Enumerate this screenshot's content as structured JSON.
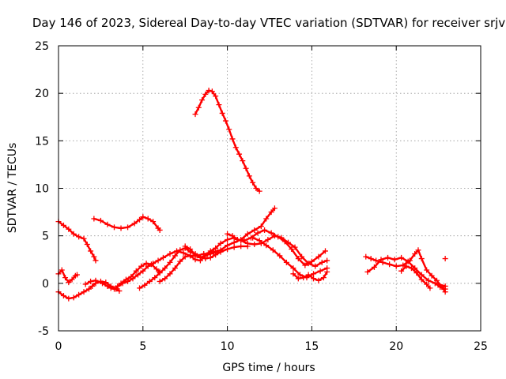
{
  "chart_data": {
    "type": "scatter",
    "title": "Day 146 of 2023, Sidereal Day-to-day VTEC variation (SDTVAR) for receiver srjv",
    "xlabel": "GPS time / hours",
    "ylabel": "SDTVAR / TECUs",
    "xlim": [
      0,
      25
    ],
    "ylim": [
      -5,
      25
    ],
    "xticks": [
      0,
      5,
      10,
      15,
      20,
      25
    ],
    "yticks": [
      -5,
      0,
      5,
      10,
      15,
      20,
      25
    ],
    "xtick_labels": [
      "0",
      "5",
      "10",
      "15",
      "20",
      "25"
    ],
    "ytick_labels": [
      "-5",
      "0",
      "5",
      "10",
      "15",
      "20",
      "25"
    ],
    "grid": true,
    "marker": "+",
    "color": "#ff0000",
    "series": [
      {
        "name": "seg-1",
        "points": [
          [
            0.0,
            6.5
          ],
          [
            0.3,
            6.1
          ],
          [
            0.6,
            5.7
          ],
          [
            0.9,
            5.2
          ],
          [
            1.2,
            4.9
          ],
          [
            1.5,
            4.7
          ],
          [
            1.7,
            4.1
          ],
          [
            1.9,
            3.4
          ],
          [
            2.1,
            2.8
          ],
          [
            2.2,
            2.4
          ]
        ]
      },
      {
        "name": "seg-2",
        "points": [
          [
            2.1,
            6.8
          ],
          [
            2.5,
            6.6
          ],
          [
            2.9,
            6.2
          ],
          [
            3.3,
            5.9
          ],
          [
            3.7,
            5.8
          ],
          [
            4.1,
            5.9
          ],
          [
            4.5,
            6.3
          ],
          [
            4.8,
            6.7
          ],
          [
            5.0,
            7.0
          ],
          [
            5.3,
            6.8
          ],
          [
            5.6,
            6.5
          ],
          [
            5.9,
            5.8
          ],
          [
            6.0,
            5.6
          ]
        ]
      },
      {
        "name": "seg-3",
        "points": [
          [
            8.1,
            17.8
          ],
          [
            8.3,
            18.5
          ],
          [
            8.5,
            19.3
          ],
          [
            8.7,
            19.9
          ],
          [
            8.9,
            20.3
          ],
          [
            9.1,
            20.2
          ],
          [
            9.3,
            19.7
          ],
          [
            9.5,
            18.8
          ],
          [
            9.7,
            17.9
          ],
          [
            9.9,
            17.1
          ],
          [
            10.1,
            16.2
          ],
          [
            10.3,
            15.2
          ],
          [
            10.5,
            14.3
          ],
          [
            10.7,
            13.6
          ],
          [
            10.9,
            12.9
          ],
          [
            11.1,
            12.1
          ],
          [
            11.3,
            11.3
          ],
          [
            11.5,
            10.6
          ],
          [
            11.7,
            10.0
          ],
          [
            11.9,
            9.7
          ]
        ]
      },
      {
        "name": "seg-4",
        "points": [
          [
            0.0,
            1.0
          ],
          [
            0.2,
            1.4
          ],
          [
            0.4,
            0.6
          ],
          [
            0.6,
            0.1
          ],
          [
            0.8,
            0.4
          ],
          [
            1.0,
            0.8
          ],
          [
            1.1,
            0.9
          ]
        ]
      },
      {
        "name": "seg-5",
        "points": [
          [
            0.0,
            -0.9
          ],
          [
            0.3,
            -1.3
          ],
          [
            0.6,
            -1.6
          ],
          [
            0.9,
            -1.5
          ],
          [
            1.2,
            -1.2
          ],
          [
            1.5,
            -0.9
          ],
          [
            1.8,
            -0.6
          ],
          [
            2.0,
            -0.3
          ],
          [
            2.2,
            0.0
          ],
          [
            2.5,
            0.2
          ],
          [
            2.8,
            0.1
          ],
          [
            3.1,
            -0.3
          ],
          [
            3.4,
            -0.6
          ],
          [
            3.6,
            -0.8
          ]
        ]
      },
      {
        "name": "seg-6",
        "points": [
          [
            1.6,
            -0.1
          ],
          [
            1.9,
            0.2
          ],
          [
            2.2,
            0.3
          ],
          [
            2.6,
            0.0
          ],
          [
            2.9,
            -0.3
          ],
          [
            3.1,
            -0.5
          ],
          [
            3.3,
            -0.6
          ],
          [
            3.5,
            -0.3
          ],
          [
            3.8,
            0.0
          ],
          [
            4.1,
            0.2
          ],
          [
            4.4,
            0.5
          ],
          [
            4.7,
            0.9
          ],
          [
            5.0,
            1.3
          ],
          [
            5.3,
            1.8
          ],
          [
            5.6,
            2.1
          ],
          [
            5.9,
            2.4
          ],
          [
            6.2,
            2.7
          ],
          [
            6.6,
            3.1
          ],
          [
            7.0,
            3.4
          ],
          [
            7.4,
            3.2
          ],
          [
            7.8,
            2.9
          ],
          [
            8.2,
            2.9
          ],
          [
            8.6,
            3.1
          ],
          [
            9.0,
            3.1
          ],
          [
            9.4,
            3.3
          ]
        ]
      },
      {
        "name": "seg-7",
        "points": [
          [
            3.4,
            -0.5
          ],
          [
            3.7,
            0.0
          ],
          [
            4.0,
            0.4
          ],
          [
            4.3,
            0.7
          ],
          [
            4.6,
            1.3
          ],
          [
            4.9,
            1.8
          ],
          [
            5.2,
            2.1
          ],
          [
            5.5,
            2.0
          ],
          [
            5.8,
            1.5
          ],
          [
            6.0,
            1.2
          ]
        ]
      },
      {
        "name": "seg-8",
        "points": [
          [
            4.8,
            -0.5
          ],
          [
            5.1,
            -0.2
          ],
          [
            5.4,
            0.2
          ],
          [
            5.7,
            0.6
          ],
          [
            6.0,
            1.1
          ],
          [
            6.3,
            1.6
          ],
          [
            6.6,
            2.2
          ],
          [
            6.9,
            2.9
          ],
          [
            7.2,
            3.5
          ],
          [
            7.5,
            3.7
          ],
          [
            7.8,
            3.3
          ],
          [
            8.1,
            3.1
          ],
          [
            8.4,
            2.8
          ],
          [
            8.7,
            2.6
          ],
          [
            9.0,
            2.7
          ],
          [
            9.3,
            3.0
          ],
          [
            9.6,
            3.3
          ],
          [
            10.0,
            3.6
          ],
          [
            10.4,
            3.8
          ],
          [
            10.8,
            3.9
          ],
          [
            11.2,
            3.9
          ]
        ]
      },
      {
        "name": "seg-9",
        "points": [
          [
            6.0,
            0.2
          ],
          [
            6.3,
            0.5
          ],
          [
            6.6,
            1.0
          ],
          [
            6.9,
            1.6
          ],
          [
            7.2,
            2.3
          ],
          [
            7.5,
            2.8
          ],
          [
            7.8,
            2.9
          ],
          [
            8.1,
            2.5
          ],
          [
            8.4,
            2.4
          ],
          [
            8.7,
            2.9
          ],
          [
            9.0,
            3.4
          ],
          [
            9.3,
            3.7
          ],
          [
            9.6,
            4.2
          ],
          [
            10.0,
            4.6
          ],
          [
            10.4,
            4.8
          ],
          [
            10.8,
            4.5
          ],
          [
            11.2,
            4.2
          ],
          [
            11.6,
            4.1
          ],
          [
            12.0,
            4.2
          ],
          [
            12.4,
            4.6
          ],
          [
            12.8,
            5.0
          ],
          [
            13.2,
            4.8
          ],
          [
            13.6,
            4.3
          ],
          [
            14.0,
            3.8
          ],
          [
            14.4,
            2.8
          ],
          [
            14.8,
            2.1
          ],
          [
            15.2,
            1.8
          ],
          [
            15.6,
            2.2
          ],
          [
            15.9,
            2.4
          ]
        ]
      },
      {
        "name": "seg-10",
        "points": [
          [
            7.5,
            3.9
          ],
          [
            7.8,
            3.6
          ],
          [
            8.1,
            3.0
          ],
          [
            8.4,
            2.7
          ],
          [
            8.8,
            3.0
          ],
          [
            9.2,
            3.3
          ],
          [
            9.6,
            3.5
          ],
          [
            10.0,
            4.0
          ],
          [
            10.4,
            4.3
          ],
          [
            10.8,
            4.6
          ],
          [
            11.2,
            5.2
          ],
          [
            11.6,
            5.6
          ],
          [
            12.0,
            6.0
          ],
          [
            12.3,
            6.8
          ],
          [
            12.6,
            7.5
          ],
          [
            12.8,
            7.9
          ]
        ]
      },
      {
        "name": "seg-11",
        "points": [
          [
            10.0,
            5.2
          ],
          [
            10.3,
            5.0
          ],
          [
            10.6,
            4.6
          ],
          [
            11.0,
            4.5
          ],
          [
            11.4,
            4.8
          ],
          [
            11.8,
            5.3
          ],
          [
            12.2,
            5.6
          ],
          [
            12.6,
            5.3
          ],
          [
            13.0,
            4.9
          ],
          [
            13.4,
            4.4
          ],
          [
            13.8,
            3.6
          ],
          [
            14.2,
            2.6
          ],
          [
            14.6,
            1.9
          ],
          [
            15.0,
            2.3
          ],
          [
            15.4,
            2.8
          ],
          [
            15.8,
            3.4
          ]
        ]
      },
      {
        "name": "seg-12",
        "points": [
          [
            11.5,
            4.8
          ],
          [
            11.9,
            4.5
          ],
          [
            12.3,
            4.0
          ],
          [
            12.7,
            3.5
          ],
          [
            13.1,
            2.9
          ],
          [
            13.5,
            2.2
          ],
          [
            13.9,
            1.6
          ],
          [
            14.3,
            0.9
          ],
          [
            14.7,
            0.6
          ],
          [
            15.1,
            1.0
          ],
          [
            15.5,
            1.3
          ],
          [
            15.9,
            1.6
          ]
        ]
      },
      {
        "name": "seg-13",
        "points": [
          [
            13.9,
            1.0
          ],
          [
            14.2,
            0.5
          ],
          [
            14.5,
            0.6
          ],
          [
            14.8,
            0.9
          ],
          [
            15.1,
            0.5
          ],
          [
            15.4,
            0.3
          ],
          [
            15.7,
            0.6
          ],
          [
            15.9,
            1.2
          ]
        ]
      },
      {
        "name": "seg-14",
        "points": [
          [
            18.2,
            2.8
          ],
          [
            18.5,
            2.6
          ],
          [
            18.8,
            2.4
          ],
          [
            19.2,
            2.2
          ],
          [
            19.6,
            2.0
          ],
          [
            20.0,
            1.8
          ],
          [
            20.4,
            1.9
          ],
          [
            20.8,
            2.4
          ],
          [
            21.1,
            3.1
          ],
          [
            21.3,
            3.5
          ],
          [
            21.5,
            2.6
          ],
          [
            21.8,
            1.4
          ],
          [
            22.1,
            0.8
          ],
          [
            22.4,
            0.3
          ],
          [
            22.7,
            -0.4
          ],
          [
            22.9,
            -0.9
          ]
        ]
      },
      {
        "name": "seg-15",
        "points": [
          [
            18.3,
            1.2
          ],
          [
            18.7,
            1.7
          ],
          [
            19.1,
            2.5
          ],
          [
            19.5,
            2.7
          ],
          [
            19.9,
            2.5
          ],
          [
            20.3,
            2.7
          ],
          [
            20.7,
            2.3
          ],
          [
            21.1,
            1.6
          ],
          [
            21.5,
            0.9
          ],
          [
            21.9,
            0.3
          ],
          [
            22.3,
            0.0
          ],
          [
            22.6,
            -0.4
          ],
          [
            22.9,
            -0.6
          ]
        ]
      },
      {
        "name": "seg-16",
        "points": [
          [
            20.3,
            1.3
          ],
          [
            20.6,
            1.8
          ],
          [
            20.9,
            1.6
          ],
          [
            21.2,
            1.1
          ],
          [
            21.5,
            0.4
          ],
          [
            21.8,
            -0.1
          ],
          [
            22.0,
            -0.5
          ]
        ]
      },
      {
        "name": "seg-17",
        "points": [
          [
            22.5,
            -0.1
          ],
          [
            22.9,
            -0.3
          ]
        ]
      },
      {
        "name": "seg-18",
        "points": [
          [
            22.9,
            2.6
          ]
        ]
      }
    ]
  }
}
